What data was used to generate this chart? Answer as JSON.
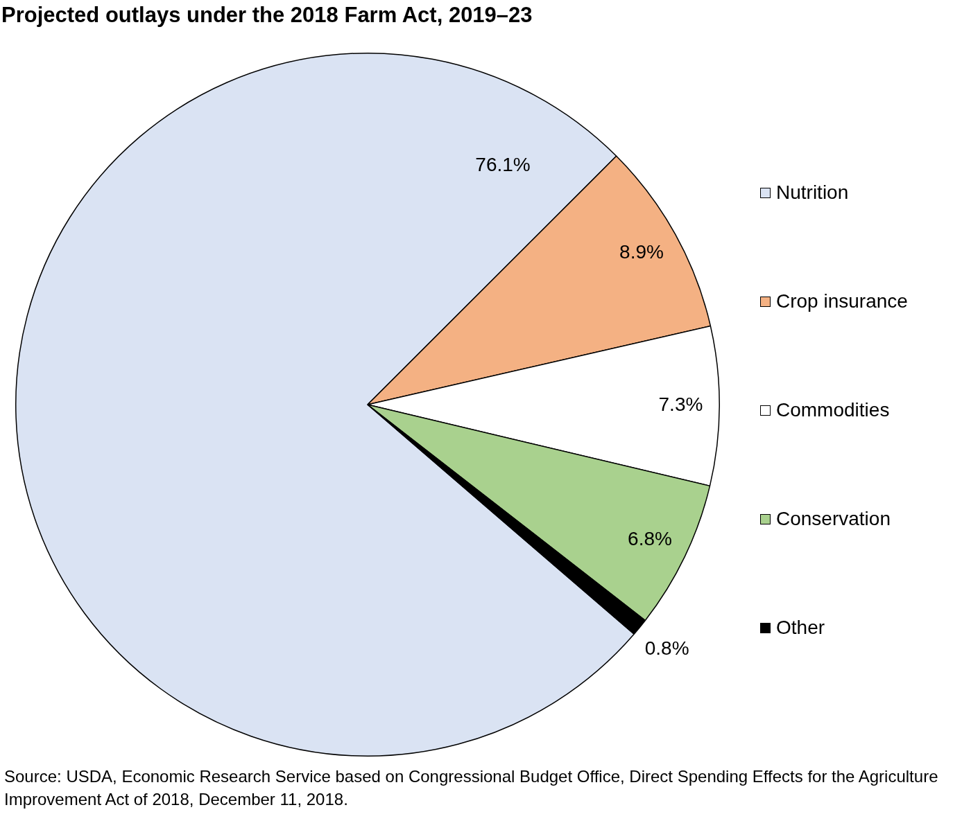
{
  "chart_data": {
    "type": "pie",
    "title": "Projected outlays under the 2018 Farm Act, 2019–23",
    "categories": [
      "Nutrition",
      "Crop insurance",
      "Commodities",
      "Conservation",
      "Other"
    ],
    "values": [
      76.1,
      8.9,
      7.3,
      6.8,
      0.8
    ],
    "colors": [
      "#dae3f3",
      "#f4b183",
      "#ffffff",
      "#a9d18e",
      "#000000"
    ],
    "value_labels": [
      "76.1%",
      "8.9%",
      "7.3%",
      "6.8%",
      "0.8%"
    ],
    "legend": "right",
    "annotations": [
      "Source: USDA, Economic Research Service based on Congressional Budget Office, Direct Spending Effects for the Agriculture Improvement Act of 2018, December 11, 2018."
    ]
  }
}
